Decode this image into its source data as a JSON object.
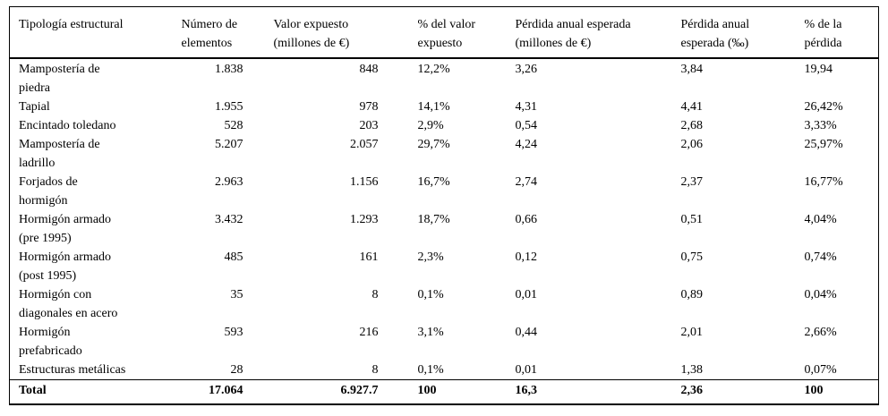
{
  "table": {
    "header": [
      [
        "Tipología estructural"
      ],
      [
        "Número de",
        "elementos"
      ],
      [
        "Valor expuesto",
        "(millones de €)"
      ],
      [
        "% del valor",
        "expuesto"
      ],
      [
        "Pérdida anual esperada",
        "(millones de €)"
      ],
      [
        "Pérdida anual",
        "esperada (‰)"
      ],
      [
        "% de la",
        "pérdida"
      ]
    ],
    "rows": [
      [
        [
          "Mampostería de",
          "piedra"
        ],
        "1.838",
        "848",
        "12,2%",
        "3,26",
        "3,84",
        "19,94"
      ],
      [
        [
          "Tapial"
        ],
        "1.955",
        "978",
        "14,1%",
        "4,31",
        "4,41",
        "26,42%"
      ],
      [
        [
          "Encintado toledano"
        ],
        "528",
        "203",
        "2,9%",
        "0,54",
        "2,68",
        "3,33%"
      ],
      [
        [
          "Mampostería de",
          "ladrillo"
        ],
        "5.207",
        "2.057",
        "29,7%",
        "4,24",
        "2,06",
        "25,97%"
      ],
      [
        [
          "Forjados de",
          "hormigón"
        ],
        "2.963",
        "1.156",
        "16,7%",
        "2,74",
        "2,37",
        "16,77%"
      ],
      [
        [
          "Hormigón armado",
          "(pre 1995)"
        ],
        "3.432",
        "1.293",
        "18,7%",
        "0,66",
        "0,51",
        "4,04%"
      ],
      [
        [
          "Hormigón armado",
          "(post 1995)"
        ],
        "485",
        "161",
        "2,3%",
        "0,12",
        "0,75",
        "0,74%"
      ],
      [
        [
          "Hormigón con",
          "diagonales en acero"
        ],
        "35",
        "8",
        "0,1%",
        "0,01",
        "0,89",
        "0,04%"
      ],
      [
        [
          "Hormigón",
          "prefabricado"
        ],
        "593",
        "216",
        "3,1%",
        "0,44",
        "2,01",
        "2,66%"
      ],
      [
        [
          "Estructuras metálicas"
        ],
        "28",
        "8",
        "0,1%",
        "0,01",
        "1,38",
        "0,07%"
      ]
    ],
    "total": [
      "Total",
      "17.064",
      "6.927.7",
      "100",
      "16,3",
      "2,36",
      "100"
    ]
  }
}
